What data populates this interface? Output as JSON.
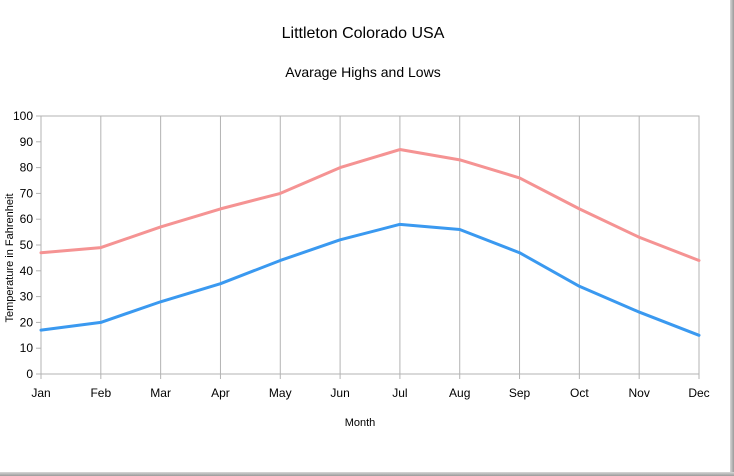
{
  "chart_data": {
    "type": "line",
    "title": "Littleton Colorado USA",
    "subtitle": "Avarage Highs and Lows",
    "xlabel": "Month",
    "ylabel": "Temperature in Fahrenheit",
    "categories": [
      "Jan",
      "Feb",
      "Mar",
      "Apr",
      "May",
      "Jun",
      "Jul",
      "Aug",
      "Sep",
      "Oct",
      "Nov",
      "Dec"
    ],
    "ylim": [
      0,
      100
    ],
    "yticks": [
      0,
      10,
      20,
      30,
      40,
      50,
      60,
      70,
      80,
      90,
      100
    ],
    "grid": "vertical",
    "legend": "none",
    "series": [
      {
        "values": [
          47,
          49,
          57,
          64,
          70,
          80,
          87,
          83,
          76,
          64,
          53,
          44
        ],
        "color": "#f59393"
      },
      {
        "values": [
          17,
          20,
          28,
          35,
          44,
          52,
          58,
          56,
          47,
          34,
          24,
          15
        ],
        "color": "#3a99f0"
      }
    ]
  }
}
